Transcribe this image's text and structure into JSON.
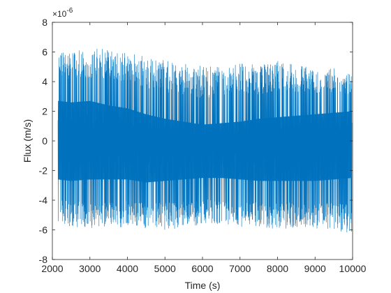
{
  "chart_data": {
    "type": "line",
    "title": "",
    "xlabel": "Time (s)",
    "ylabel": "Flux (m/s)",
    "xlim": [
      2000,
      10000
    ],
    "ylim": [
      -8e-06,
      8e-06
    ],
    "x_ticks": [
      2000,
      3000,
      4000,
      5000,
      6000,
      7000,
      8000,
      9000,
      10000
    ],
    "x_tick_labels": [
      "2000",
      "3000",
      "4000",
      "5000",
      "6000",
      "7000",
      "8000",
      "9000",
      "10000"
    ],
    "y_ticks": [
      -8e-06,
      -6e-06,
      -4e-06,
      -2e-06,
      0,
      2e-06,
      4e-06,
      6e-06,
      8e-06
    ],
    "y_tick_labels": [
      "-8",
      "-6",
      "-4",
      "-2",
      "0",
      "2",
      "4",
      "6",
      "8"
    ],
    "y_exponent_prefix": "×10",
    "y_exponent_power": "-6",
    "grid": false,
    "legend": "none",
    "series": [
      {
        "color": "#0072BD",
        "x_start": 2150,
        "x_end": 9980,
        "envelope_x": [
          2150,
          2500,
          3000,
          3500,
          4000,
          4500,
          5000,
          5500,
          6000,
          6500,
          7000,
          7500,
          8000,
          8500,
          9000,
          9500,
          9980
        ],
        "envelope_upper": [
          6e-06,
          6.1e-06,
          6.2e-06,
          6.3e-06,
          6e-06,
          5.8e-06,
          5.5e-06,
          5.2e-06,
          5.1e-06,
          5e-06,
          5.3e-06,
          5.1e-06,
          5.4e-06,
          5.1e-06,
          5e-06,
          4.9e-06,
          4.6e-06
        ],
        "envelope_lower": [
          -5.6e-06,
          -5.8e-06,
          -5.9e-06,
          -6e-06,
          -5.8e-06,
          -5.9e-06,
          -6e-06,
          -5.9e-06,
          -5.6e-06,
          -5.6e-06,
          -5.8e-06,
          -5.9e-06,
          -6e-06,
          -5.9e-06,
          -5.9e-06,
          -6e-06,
          -6.4e-06
        ],
        "dense_band_upper": [
          2.7e-06,
          2.6e-06,
          2.7e-06,
          2.4e-06,
          2.2e-06,
          1.8e-06,
          1.5e-06,
          1.3e-06,
          1.1e-06,
          1.2e-06,
          1.3e-06,
          1.5e-06,
          1.6e-06,
          1.7e-06,
          1.8e-06,
          1.9e-06,
          2e-06
        ],
        "dense_band_lower": [
          -2.6e-06,
          -2.7e-06,
          -2.6e-06,
          -2.6e-06,
          -2.6e-06,
          -2.8e-06,
          -2.7e-06,
          -2.6e-06,
          -2.5e-06,
          -2.5e-06,
          -2.6e-06,
          -2.7e-06,
          -2.7e-06,
          -2.7e-06,
          -2.7e-06,
          -2.6e-06,
          -2.5e-06
        ]
      }
    ]
  }
}
